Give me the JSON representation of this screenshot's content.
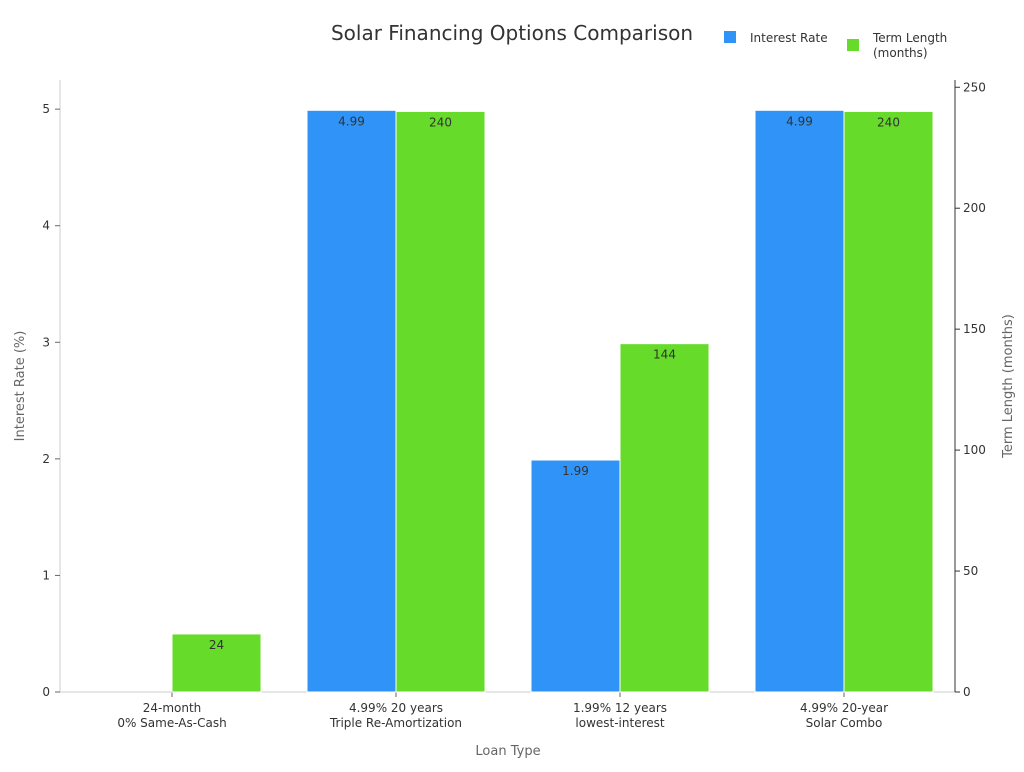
{
  "chart_data": {
    "type": "bar",
    "title": "Solar Financing Options Comparison",
    "xlabel": "Loan Type",
    "ylabel": "Interest Rate (%)",
    "y2label": "Term Length (months)",
    "categories": [
      [
        "24-month",
        "0% Same-As-Cash"
      ],
      [
        "4.99% 20 years",
        "Triple Re-Amortization"
      ],
      [
        "1.99% 12 years",
        "lowest-interest"
      ],
      [
        "4.99% 20-year",
        "Solar Combo"
      ]
    ],
    "series": [
      {
        "name": "Interest Rate",
        "axis": "left",
        "color": "#2f93f7",
        "values": [
          0,
          4.99,
          1.99,
          4.99
        ],
        "labels": [
          "",
          "4.99",
          "1.99",
          "4.99"
        ]
      },
      {
        "name": "Term Length\n(months)",
        "axis": "right",
        "color": "#66db2a",
        "values": [
          24,
          240,
          144,
          240
        ],
        "labels": [
          "24",
          "240",
          "144",
          "240"
        ]
      }
    ],
    "ylim": [
      0,
      5.25
    ],
    "y2lim": [
      0,
      253
    ],
    "yticks": [
      0,
      1,
      2,
      3,
      4,
      5
    ],
    "y2ticks": [
      0,
      50,
      100,
      150,
      200,
      250
    ],
    "grid": false,
    "legend": "top-right"
  }
}
